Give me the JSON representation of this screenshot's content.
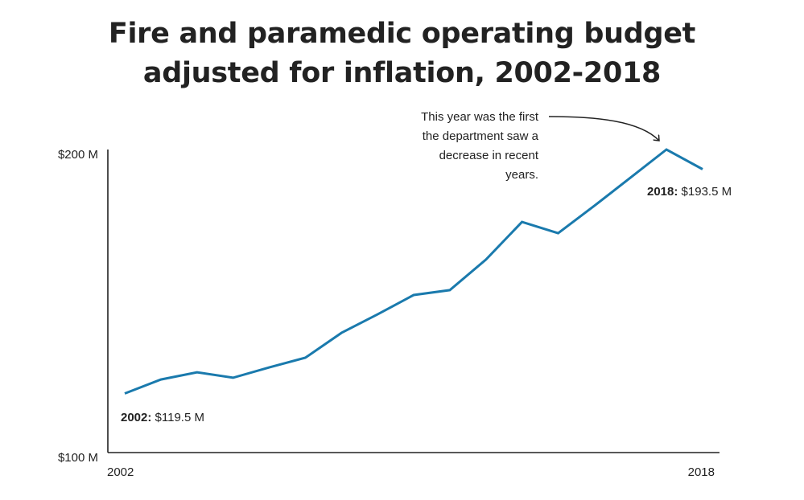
{
  "chart_data": {
    "type": "line",
    "title": "Fire and paramedic operating budget adjusted for inflation, 2002-2018",
    "title_lines": [
      "Fire and paramedic operating budget",
      "adjusted for inflation, 2002-2018"
    ],
    "xlabel": "",
    "ylabel": "",
    "x": [
      2002,
      2003,
      2004,
      2005,
      2006,
      2007,
      2008,
      2009,
      2010,
      2011,
      2012,
      2013,
      2014,
      2015,
      2016,
      2017,
      2018
    ],
    "series": [
      {
        "name": "Operating budget (inflation adjusted, $M)",
        "color": "#1a7aad",
        "values": [
          119.5,
          124.1,
          126.5,
          124.7,
          128.1,
          131.3,
          139.5,
          145.6,
          152.0,
          153.6,
          163.7,
          176.1,
          172.4,
          181.4,
          190.7,
          200.0,
          193.5
        ]
      }
    ],
    "xlim": [
      2002,
      2018
    ],
    "ylim": [
      100,
      200
    ],
    "x_tick_labels": [
      "2002",
      "2018"
    ],
    "y_ticks": [
      100,
      200
    ],
    "y_tick_labels": [
      "$100 M",
      "$200 M"
    ],
    "grid": false,
    "legend": "none",
    "data_labels": [
      {
        "year_bold": "2002:",
        "value": " $119.5 M",
        "x": 2002
      },
      {
        "year_bold": "2018:",
        "value": " $193.5 M",
        "x": 2018
      }
    ],
    "annotation": {
      "lines": [
        "This year was the first",
        "the department saw a",
        "decrease in recent",
        "years."
      ],
      "points_to_x": 2017
    }
  }
}
